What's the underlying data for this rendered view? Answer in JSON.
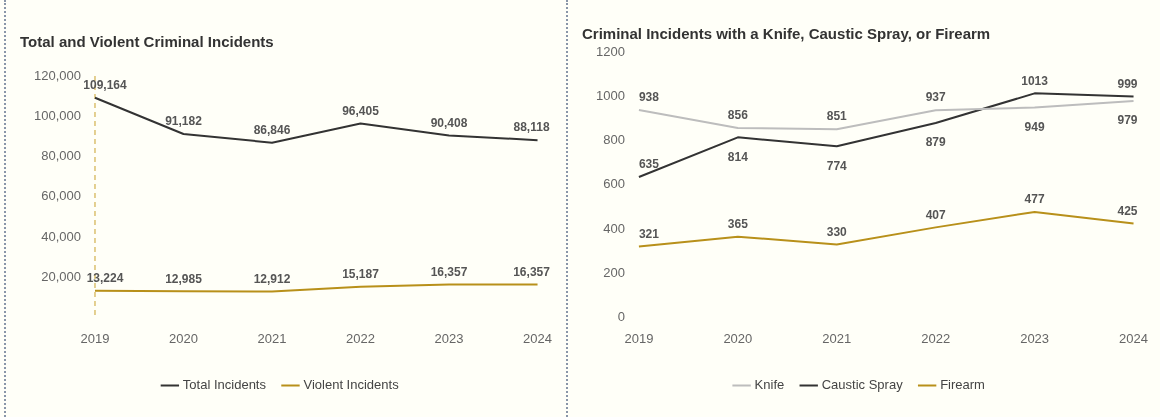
{
  "chart_data": [
    {
      "type": "line",
      "title": "Total and Violent Criminal Incidents",
      "categories": [
        "2019",
        "2020",
        "2021",
        "2022",
        "2023",
        "2024"
      ],
      "series": [
        {
          "name": "Total Incidents",
          "color": "#333333",
          "values": [
            109164,
            91182,
            86846,
            96405,
            90408,
            88118
          ],
          "value_labels": [
            "109,164",
            "91,182",
            "86,846",
            "96,405",
            "90,408",
            "88,118"
          ]
        },
        {
          "name": "Violent Incidents",
          "color": "#b8901a",
          "values": [
            13224,
            12985,
            12912,
            15187,
            16357,
            16357
          ],
          "value_labels": [
            "13,224",
            "12,985",
            "12,912",
            "15,187",
            "16,357",
            "16,357"
          ]
        }
      ],
      "ylim": [
        0,
        120000
      ],
      "yticks": [
        {
          "value": 20000,
          "label": "20,000"
        },
        {
          "value": 40000,
          "label": "40,000"
        },
        {
          "value": 60000,
          "label": "60,000"
        },
        {
          "value": 80000,
          "label": "80,000"
        },
        {
          "value": 100000,
          "label": "100,000"
        },
        {
          "value": 120000,
          "label": "120,000"
        }
      ],
      "ref_lines": [
        {
          "axis": "x",
          "value": "2019",
          "color": "#c8a02a",
          "line_style": "dashed"
        }
      ],
      "grid": false,
      "legend": "bottom",
      "marker": "none"
    },
    {
      "type": "line",
      "title": "Criminal Incidents with a Knife, Caustic Spray, or Firearm",
      "categories": [
        "2019",
        "2020",
        "2021",
        "2022",
        "2023",
        "2024"
      ],
      "series": [
        {
          "name": "Knife",
          "color": "#bdbdbd",
          "values": [
            938,
            856,
            851,
            937,
            949,
            979
          ]
        },
        {
          "name": "Caustic Spray",
          "color": "#333333",
          "values": [
            635,
            814,
            774,
            879,
            1013,
            999
          ]
        },
        {
          "name": "Firearm",
          "color": "#b8901a",
          "values": [
            321,
            365,
            330,
            407,
            477,
            425
          ]
        }
      ],
      "ylim": [
        0,
        1200
      ],
      "yticks": [
        0,
        200,
        400,
        600,
        800,
        1000,
        1200
      ],
      "data_labels": true,
      "grid": false,
      "legend": "bottom",
      "marker": "none"
    }
  ]
}
